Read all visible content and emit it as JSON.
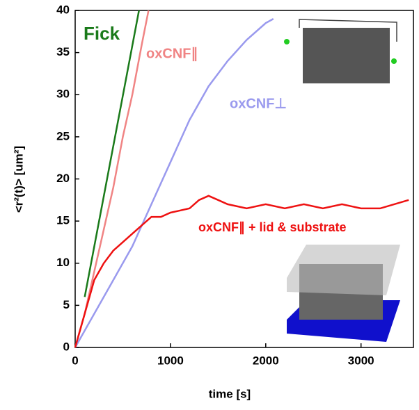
{
  "chart_data": {
    "type": "line",
    "xlabel": "time [s]",
    "ylabel": "<r²(t)> [um²]",
    "xlim": [
      0,
      3550
    ],
    "ylim": [
      0,
      40
    ],
    "xticks": [
      0,
      1000,
      2000,
      3000
    ],
    "yticks": [
      0,
      5,
      10,
      15,
      20,
      25,
      30,
      35,
      40
    ],
    "series": [
      {
        "name": "Fick",
        "color": "#1a7a1a",
        "x": [
          100,
          670
        ],
        "values": [
          6,
          40
        ]
      },
      {
        "name": "oxCNF∥",
        "color": "#f08484",
        "x": [
          0,
          100,
          200,
          300,
          400,
          500,
          600,
          700,
          770
        ],
        "values": [
          0,
          4,
          9,
          14,
          19,
          25,
          30,
          36,
          40
        ]
      },
      {
        "name": "oxCNF⊥",
        "color": "#9a9aee",
        "x": [
          0,
          200,
          400,
          600,
          800,
          1000,
          1200,
          1400,
          1600,
          1800,
          2000,
          2080
        ],
        "values": [
          0,
          4,
          8,
          12,
          17,
          22,
          27,
          31,
          34,
          36.5,
          38.5,
          39
        ]
      },
      {
        "name": "oxCNF∥ + lid & substrate",
        "color": "#ee1111",
        "x": [
          0,
          100,
          200,
          300,
          400,
          500,
          600,
          700,
          800,
          900,
          1000,
          1200,
          1300,
          1400,
          1500,
          1600,
          1800,
          2000,
          2200,
          2400,
          2600,
          2800,
          3000,
          3200,
          3500
        ],
        "values": [
          0,
          4,
          8,
          10,
          11.5,
          12.5,
          13.5,
          14.5,
          15.5,
          15.5,
          16,
          16.5,
          17.5,
          18,
          17.5,
          17,
          16.5,
          17,
          16.5,
          17,
          16.5,
          17,
          16.5,
          16.5,
          17.5
        ]
      }
    ]
  }
}
